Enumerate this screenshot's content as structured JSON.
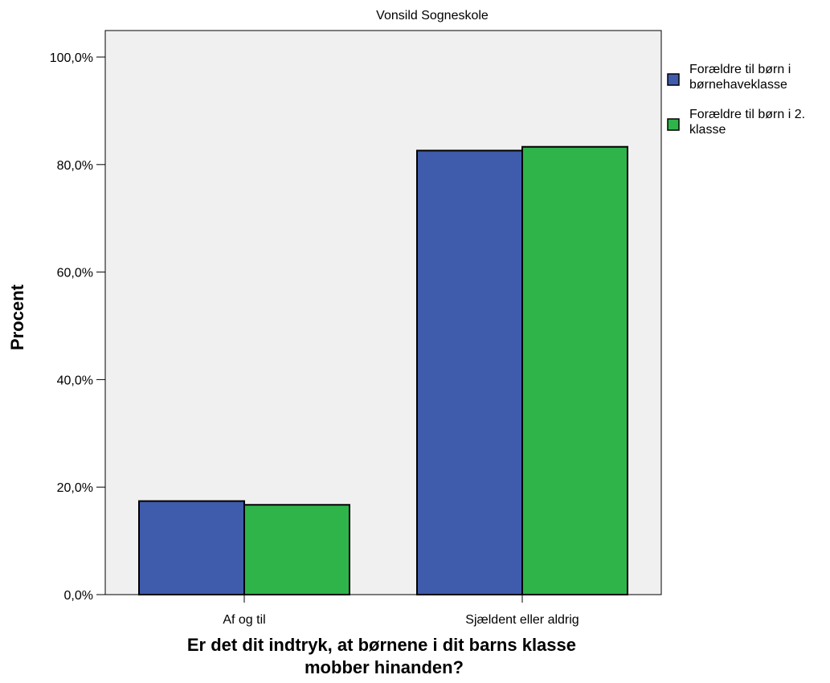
{
  "chart_data": {
    "type": "bar",
    "title": "Vonsild Sogneskole",
    "xlabel_lines": [
      "Er det dit indtryk, at børnene i dit barns klasse",
      "mobber hinanden?"
    ],
    "ylabel": "Procent",
    "categories": [
      "Af og til",
      "Sjældent eller aldrig"
    ],
    "series": [
      {
        "name_lines": [
          "Forældre til børn i",
          "børnehaveklasse"
        ],
        "color": "#3f5bab",
        "values": [
          17.4,
          82.6
        ]
      },
      {
        "name_lines": [
          "Forældre til børn i 2.",
          "klasse"
        ],
        "color": "#2fb44a",
        "values": [
          16.7,
          83.3
        ]
      }
    ],
    "ylim": [
      0,
      100
    ],
    "yticks": [
      0,
      20,
      40,
      60,
      80,
      100
    ],
    "ytick_labels": [
      "0,0%",
      "20,0%",
      "40,0%",
      "60,0%",
      "80,0%",
      "100,0%"
    ],
    "legend_position": "right",
    "grid": false,
    "plot_background": "#f0f0f0"
  }
}
